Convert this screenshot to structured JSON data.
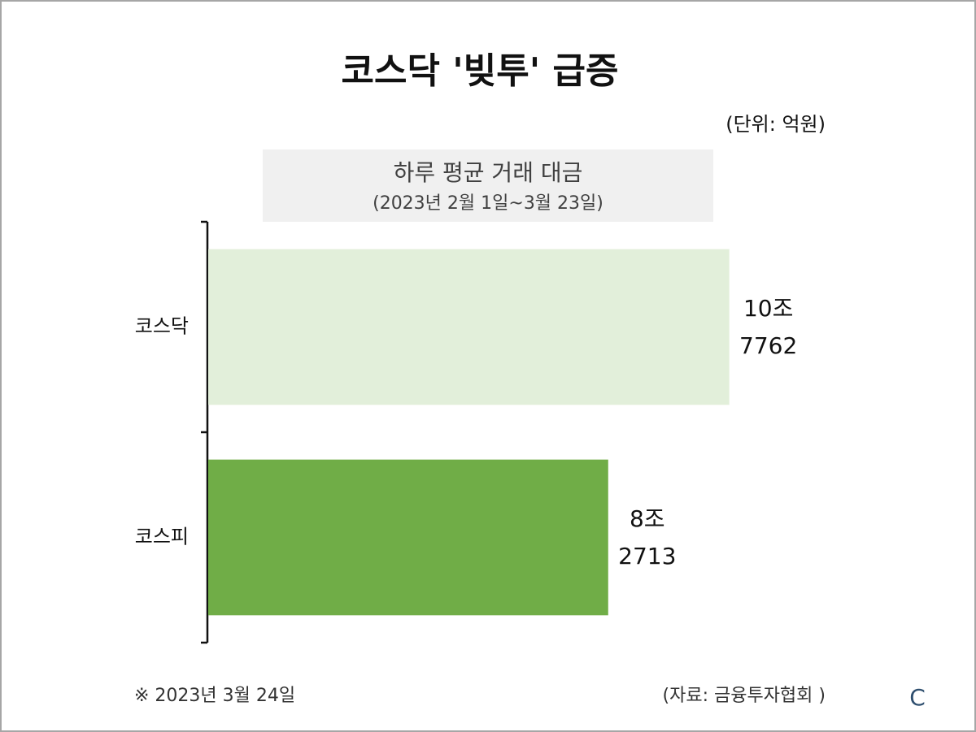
{
  "chart_data": {
    "type": "hbar",
    "title": "코스닥 '빚투' 급증",
    "unit": "(단위: 억원)",
    "subtitle": "하루 평균 거래 대금",
    "period": "(2023년 2월 1일~3월 23일)",
    "categories": [
      "코스닥",
      "코스피"
    ],
    "values": [
      107762,
      82713
    ],
    "value_labels": [
      "10조\n7762",
      "8조\n2713"
    ],
    "colors": [
      "#e2efda",
      "#70ad47"
    ],
    "xlim": [
      0,
      110000
    ],
    "note": "※ 2023년 3월 24일",
    "source": "(자료: 금융투자협회 )",
    "logo": "C"
  }
}
